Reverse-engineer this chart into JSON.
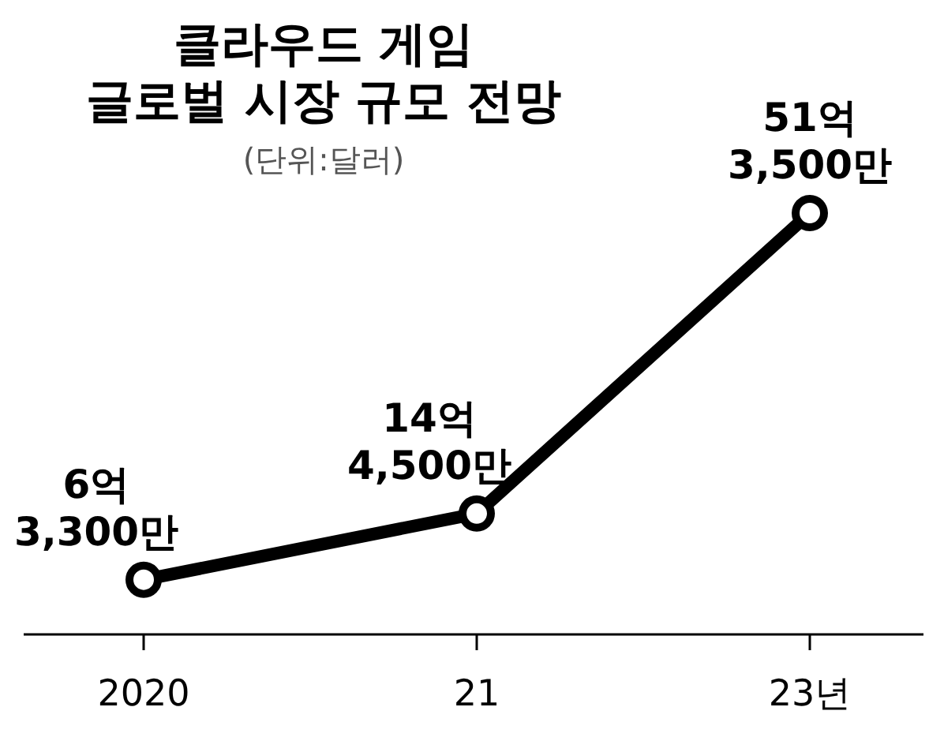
{
  "chart_data": {
    "type": "line",
    "title": "클라우드 게임\n글로벌 시장 규모 전망",
    "subtitle": "(단위:달러)",
    "categories": [
      "2020",
      "21",
      "23년"
    ],
    "series": [
      {
        "color": "#000000",
        "values": [
          6.33,
          14.45,
          51.35
        ],
        "value_labels": [
          "6억 3,300만",
          "14억 4,500만",
          "51억 3,500만"
        ]
      }
    ],
    "marker": "circle",
    "tick_labels": "x"
  }
}
